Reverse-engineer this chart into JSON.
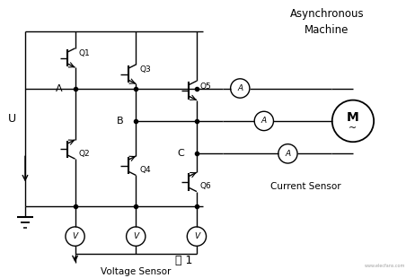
{
  "title": "图 1",
  "bg_color": "#ffffff",
  "text_color": "#000000",
  "line_color": "#000000",
  "fig_width": 4.62,
  "fig_height": 3.1,
  "dpi": 100,
  "top_label": "Asynchronous\nMachine",
  "current_sensor_label": "Current Sensor",
  "voltage_sensor_label": "Voltage Sensor",
  "u_label": "U",
  "node_labels": [
    "A",
    "B",
    "C"
  ],
  "transistor_labels": [
    "Q1",
    "Q2",
    "Q3",
    "Q4",
    "Q5",
    "Q6"
  ],
  "xlim": [
    0,
    9.5
  ],
  "ylim": [
    0,
    6.2
  ]
}
